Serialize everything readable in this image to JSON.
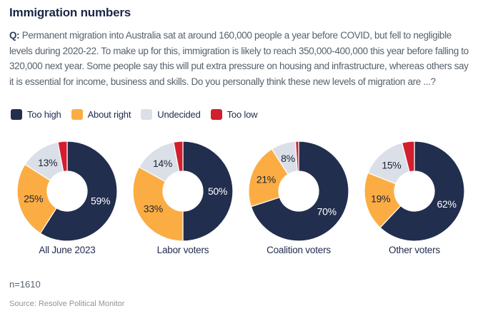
{
  "title": "Immigration numbers",
  "question": {
    "prefix": "Q:",
    "body": "Permanent migration into Australia sat at around 160,000 people a year before COVID, but fell to negligible levels during 2020-22. To make up for this, immigration is likely to reach 350,000-400,000 this year before falling to 320,000 next year. Some people say this will put extra pressure on housing and infrastructure, whereas others say it is essential for income, business and skills. Do you personally think these new levels of migration are ...?"
  },
  "legend": {
    "items": [
      {
        "label": "Too high",
        "color": "#222E4E"
      },
      {
        "label": "About right",
        "color": "#FBAD44"
      },
      {
        "label": "Undecided",
        "color": "#DBDFE8"
      },
      {
        "label": "Too low",
        "color": "#D11F2F"
      }
    ]
  },
  "chart_data": {
    "type": "pie",
    "variant": "donut",
    "legend_position": "top",
    "direction": "clockwise",
    "start_angle_deg": 0,
    "series_labels": [
      "Too high",
      "About right",
      "Undecided",
      "Too low"
    ],
    "series_colors": [
      "#222E4E",
      "#FBAD44",
      "#DBDFE8",
      "#D11F2F"
    ],
    "value_label_colors": [
      "#FFFFFF",
      "#1B2433",
      "#1B2433",
      ""
    ],
    "charts": [
      {
        "category": "All June 2023",
        "values": [
          59,
          25,
          13,
          3
        ],
        "value_labels": [
          "59%",
          "25%",
          "13%",
          ""
        ]
      },
      {
        "category": "Labor voters",
        "values": [
          50,
          33,
          14,
          3
        ],
        "value_labels": [
          "50%",
          "33%",
          "14%",
          ""
        ]
      },
      {
        "category": "Coalition voters",
        "values": [
          70,
          21,
          8,
          1
        ],
        "value_labels": [
          "70%",
          "21%",
          "8%",
          ""
        ]
      },
      {
        "category": "Other voters",
        "values": [
          62,
          19,
          15,
          4
        ],
        "value_labels": [
          "62%",
          "19%",
          "15%",
          ""
        ]
      }
    ]
  },
  "footer": {
    "sample_size": "n=1610",
    "source": "Source: Resolve Political Monitor"
  }
}
